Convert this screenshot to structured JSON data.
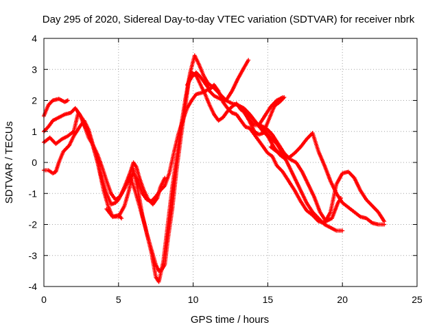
{
  "chart_data": {
    "type": "scatter",
    "title": "Day 295 of 2020, Sidereal Day-to-day VTEC variation (SDTVAR) for receiver nbrk",
    "xlabel": "GPS time / hours",
    "ylabel": "SDTVAR / TECUs",
    "xlim": [
      0,
      25
    ],
    "ylim": [
      -4,
      4
    ],
    "xticks": [
      0,
      5,
      10,
      15,
      20,
      25
    ],
    "yticks": [
      -4,
      -3,
      -2,
      -1,
      0,
      1,
      2,
      3,
      4
    ],
    "xtick_labels": [
      "0",
      "5",
      "10",
      "15",
      "20",
      "25"
    ],
    "ytick_labels": [
      "-4",
      "-3",
      "-2",
      "-1",
      "0",
      "1",
      "2",
      "3",
      "4"
    ],
    "grid": true,
    "marker": "+",
    "color": "#ff0000",
    "series": [
      {
        "name": "track-1",
        "x": [
          0.0,
          0.3,
          0.6,
          1.0,
          1.4,
          1.6
        ],
        "y": [
          1.5,
          1.85,
          2.0,
          2.05,
          1.95,
          2.0
        ]
      },
      {
        "name": "track-2",
        "x": [
          0.0,
          0.4,
          0.8,
          1.2,
          1.6,
          2.0,
          2.3,
          2.6,
          2.8,
          3.0,
          3.3,
          3.6,
          4.0,
          4.3,
          4.6,
          5.0,
          5.2
        ],
        "y": [
          0.65,
          0.8,
          0.6,
          0.75,
          0.85,
          1.0,
          1.6,
          1.4,
          1.1,
          1.0,
          0.5,
          0.0,
          -0.9,
          -1.4,
          -1.75,
          -1.7,
          -1.8
        ]
      },
      {
        "name": "track-3",
        "x": [
          0.0,
          0.3,
          0.6,
          0.8,
          1.0,
          1.3,
          1.7,
          2.0,
          2.4,
          2.7,
          3.0,
          3.3,
          3.6,
          3.9,
          4.2,
          4.5,
          4.8,
          5.0,
          5.3,
          5.6,
          5.8,
          6.0,
          6.2,
          6.4,
          6.7,
          7.0,
          7.3,
          7.6,
          7.8,
          8.1
        ],
        "y": [
          -0.25,
          -0.25,
          -0.35,
          -0.3,
          0.0,
          0.35,
          0.55,
          0.85,
          1.15,
          1.35,
          1.05,
          0.55,
          0.0,
          -0.55,
          -1.0,
          -1.35,
          -1.3,
          -1.2,
          -0.9,
          -0.55,
          -0.3,
          0.0,
          -0.15,
          -0.5,
          -0.9,
          -1.2,
          -1.35,
          -1.15,
          -0.8,
          -0.5
        ]
      },
      {
        "name": "track-4",
        "x": [
          0.0,
          0.3,
          0.6,
          1.0,
          1.4,
          1.8,
          2.1,
          2.4,
          2.7,
          3.0,
          3.3,
          3.6,
          3.9,
          4.2,
          4.5,
          4.8,
          5.1,
          5.4,
          5.7,
          6.0,
          6.3,
          6.6,
          6.9,
          7.2,
          7.5,
          7.8,
          8.1,
          8.4,
          8.7,
          9.0,
          9.3,
          9.6,
          9.9,
          10.2,
          10.6,
          11.0,
          11.4,
          11.8,
          12.2,
          12.6,
          13.0,
          13.4,
          13.8,
          14.2,
          14.6,
          15.0,
          15.4,
          15.8,
          16.2
        ],
        "y": [
          1.0,
          1.15,
          1.35,
          1.45,
          1.55,
          1.6,
          1.75,
          1.55,
          1.2,
          0.8,
          0.55,
          0.25,
          -0.15,
          -0.6,
          -1.0,
          -1.2,
          -1.1,
          -0.85,
          -0.55,
          -0.35,
          -0.6,
          -1.0,
          -1.2,
          -1.25,
          -1.1,
          -0.9,
          -0.75,
          -0.35,
          0.3,
          0.9,
          1.35,
          1.75,
          2.0,
          2.2,
          2.25,
          2.35,
          2.15,
          2.05,
          2.0,
          1.9,
          1.85,
          1.75,
          1.55,
          1.3,
          1.05,
          0.85,
          0.5,
          0.25,
          0.1
        ]
      },
      {
        "name": "track-5",
        "x": [
          4.2,
          4.6,
          5.0,
          5.4,
          5.7,
          6.0,
          6.3,
          6.6,
          6.9,
          7.2,
          7.5,
          7.7,
          7.9,
          8.1,
          8.3,
          8.6,
          8.9,
          9.2,
          9.5,
          9.7,
          9.9,
          10.2,
          10.5,
          10.8,
          11.1,
          11.4,
          11.7,
          12.0,
          12.3,
          12.6,
          12.9,
          13.2,
          13.5,
          13.8,
          14.1,
          14.4,
          14.7,
          15.0,
          15.3,
          15.6,
          16.0
        ],
        "y": [
          -1.5,
          -1.75,
          -1.75,
          -1.4,
          -0.9,
          -0.2,
          -0.9,
          -1.7,
          -2.3,
          -2.8,
          -3.3,
          -3.5,
          -3.45,
          -3.3,
          -2.5,
          -1.5,
          -0.2,
          0.9,
          1.9,
          2.6,
          2.9,
          2.8,
          2.5,
          2.2,
          1.85,
          1.55,
          1.35,
          1.45,
          1.65,
          1.8,
          1.9,
          1.7,
          1.6,
          1.3,
          1.0,
          0.9,
          0.95,
          1.3,
          1.65,
          2.0,
          2.1
        ]
      },
      {
        "name": "track-6",
        "x": [
          5.8,
          6.1,
          6.4,
          6.8,
          7.2,
          7.5,
          7.7,
          8.0,
          8.3,
          8.6,
          8.9,
          9.2,
          9.5,
          9.8,
          10.1,
          10.4,
          10.7,
          11.0,
          11.4,
          11.8,
          12.2,
          12.6,
          13.0,
          13.4,
          13.7
        ],
        "y": [
          -0.5,
          -0.9,
          -1.4,
          -2.1,
          -2.9,
          -3.7,
          -3.85,
          -3.2,
          -2.0,
          -0.8,
          0.2,
          1.2,
          2.1,
          2.9,
          3.45,
          3.15,
          2.8,
          2.55,
          2.4,
          2.2,
          2.0,
          2.3,
          2.7,
          3.05,
          3.3
        ]
      },
      {
        "name": "track-7",
        "x": [
          9.6,
          9.9,
          10.2,
          10.5,
          10.8,
          11.1,
          11.4,
          11.7,
          12.0,
          12.3,
          12.6,
          12.9,
          13.2,
          13.5,
          13.8,
          14.1,
          14.4,
          14.7,
          15.0,
          15.3,
          15.6,
          16.0,
          16.4,
          16.8,
          17.2,
          17.6,
          18.0,
          18.4,
          18.8,
          19.2,
          19.6,
          20.0,
          20.4,
          20.8,
          21.2,
          21.6,
          22.0,
          22.4,
          22.8
        ],
        "y": [
          2.5,
          2.75,
          2.9,
          2.75,
          2.55,
          2.35,
          2.5,
          2.3,
          1.95,
          1.75,
          1.6,
          1.55,
          1.35,
          1.15,
          1.1,
          0.9,
          0.7,
          0.5,
          0.3,
          0.2,
          -0.1,
          -0.3,
          -0.6,
          -0.9,
          -1.25,
          -1.55,
          -1.7,
          -1.9,
          -1.95,
          -1.6,
          -0.7,
          -0.35,
          -0.3,
          -0.5,
          -0.9,
          -1.2,
          -1.4,
          -1.6,
          -1.9
        ]
      },
      {
        "name": "track-8",
        "x": [
          13.6,
          14.0,
          14.4,
          14.8,
          15.2,
          15.6,
          16.0,
          16.4,
          16.8,
          17.2,
          17.6,
          18.0,
          18.4,
          18.8,
          19.2,
          19.6,
          20.0
        ],
        "y": [
          1.6,
          1.4,
          1.2,
          1.0,
          0.8,
          0.6,
          0.3,
          -0.1,
          -0.5,
          -0.9,
          -1.3,
          -1.6,
          -1.8,
          -2.0,
          -2.1,
          -2.2,
          -2.2
        ]
      },
      {
        "name": "track-9",
        "x": [
          13.3,
          13.7,
          14.1,
          14.5,
          14.9,
          15.3,
          15.7,
          16.1,
          16.5,
          16.9,
          17.3,
          17.7,
          18.1,
          18.5,
          18.9,
          19.3,
          19.7,
          19.9
        ],
        "y": [
          1.7,
          1.4,
          1.2,
          1.2,
          1.1,
          0.9,
          0.6,
          0.3,
          0.1,
          0.0,
          -0.3,
          -0.7,
          -1.1,
          -1.6,
          -1.9,
          -1.8,
          -1.3,
          -1.15
        ]
      },
      {
        "name": "track-10",
        "x": [
          15.2,
          15.6,
          16.0,
          16.4,
          16.8,
          17.2,
          17.6,
          18.0,
          18.4,
          18.8,
          19.2,
          19.6,
          20.0,
          20.4,
          20.8,
          21.2,
          21.6,
          22.0,
          22.4,
          22.8
        ],
        "y": [
          0.5,
          0.35,
          0.3,
          0.15,
          0.3,
          0.5,
          0.75,
          0.95,
          0.35,
          -0.1,
          -0.6,
          -1.0,
          -1.3,
          -1.45,
          -1.6,
          -1.75,
          -1.8,
          -1.95,
          -2.0,
          -2.0
        ]
      },
      {
        "name": "track-11",
        "x": [
          15.4,
          15.8,
          16.1
        ],
        "y": [
          1.8,
          1.95,
          2.1
        ]
      },
      {
        "name": "track-12",
        "x": [
          14.4,
          14.8,
          15.2,
          15.6,
          16.0
        ],
        "y": [
          1.2,
          1.5,
          1.8,
          2.0,
          2.05
        ]
      }
    ]
  }
}
